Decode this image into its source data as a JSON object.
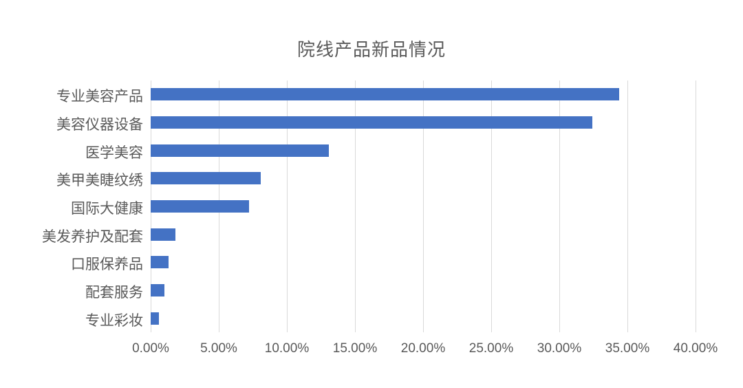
{
  "page": {
    "background": "#ffffff"
  },
  "chart": {
    "title": "院线产品新品情况",
    "title_color": "#595959",
    "bar_color": "#4472c4",
    "gridline_color": "#d9d9d9",
    "label_color": "#595959"
  },
  "chart_data": {
    "type": "bar",
    "orientation": "horizontal",
    "title": "院线产品新品情况",
    "categories": [
      "专业美容产品",
      "美容仪器设备",
      "医学美容",
      "美甲美睫纹绣",
      "国际大健康",
      "美发养护及配套",
      "口服保养品",
      "配套服务",
      "专业彩妆"
    ],
    "values": [
      34.4,
      32.4,
      13.1,
      8.1,
      7.2,
      1.8,
      1.3,
      1.0,
      0.6
    ],
    "unit": "%",
    "xlabel": "",
    "ylabel": "",
    "xlim": [
      0,
      40
    ],
    "xticks": [
      0,
      5,
      10,
      15,
      20,
      25,
      30,
      35,
      40
    ],
    "xtick_labels": [
      "0.00%",
      "5.00%",
      "10.00%",
      "15.00%",
      "20.00%",
      "25.00%",
      "30.00%",
      "35.00%",
      "40.00%"
    ],
    "grid": "vertical-only",
    "legend": "none"
  }
}
